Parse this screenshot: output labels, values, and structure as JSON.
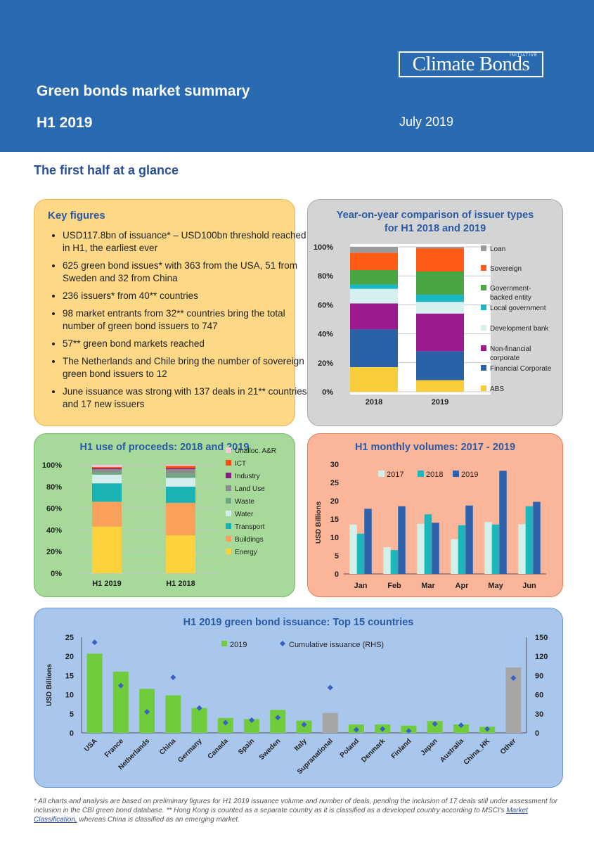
{
  "header": {
    "logo_text": "Climate Bonds",
    "logo_small": "INITIATIVE",
    "title": "Green bonds market summary",
    "subtitle": "H1 2019",
    "date": "July 2019"
  },
  "section_title": "The first half at a glance",
  "key_figures": {
    "title": "Key figures",
    "items": [
      "USD117.8bn of issuance* – USD100bn threshold reached in H1, the earliest ever",
      "625 green bond issues* with 363 from the USA, 51 from Sweden and 32 from China",
      "236 issuers* from 40** countries",
      "98 market entrants from 32** countries bring the total number of green bond issuers to 747",
      "57** green bond markets reached",
      "The Netherlands and Chile bring the number of sovereign green bond issuers to 12",
      "June issuance was strong with 137 deals in 21** countries and 17 new issuers"
    ]
  },
  "chart_data": [
    {
      "type": "bar",
      "stacked": true,
      "title": "Year-on-year comparison of issuer types for H1 2018 and 2019",
      "categories": [
        "2018",
        "2019"
      ],
      "ylim": [
        0,
        100
      ],
      "yticks": [
        "0%",
        "20%",
        "40%",
        "60%",
        "80%",
        "100%"
      ],
      "series": [
        {
          "name": "ABS",
          "color": "#f9cc3a",
          "values": [
            17,
            8
          ]
        },
        {
          "name": "Financial Corporate",
          "color": "#2a62a8",
          "values": [
            26,
            20
          ]
        },
        {
          "name": "Non-financial corporate",
          "color": "#9b1a8f",
          "values": [
            18,
            26
          ]
        },
        {
          "name": "Development bank",
          "color": "#d6f0f0",
          "values": [
            10,
            8
          ]
        },
        {
          "name": "Local government",
          "color": "#1bb8c4",
          "values": [
            3,
            5
          ]
        },
        {
          "name": "Government-backed entity",
          "color": "#4aa544",
          "values": [
            10,
            16
          ]
        },
        {
          "name": "Sovereign",
          "color": "#ff5b17",
          "values": [
            12,
            16
          ]
        },
        {
          "name": "Loan",
          "color": "#9b9b9b",
          "values": [
            4,
            1
          ]
        }
      ],
      "legend_order": [
        "Loan",
        "Sovereign",
        "Government-backed entity",
        "Local government",
        "Development bank",
        "Non-financial corporate",
        "Financial Corporate",
        "ABS"
      ]
    },
    {
      "type": "bar",
      "stacked": true,
      "title": "H1 use of proceeds: 2018 and 2019",
      "categories": [
        "H1 2019",
        "H1 2018"
      ],
      "ylim": [
        0,
        100
      ],
      "yticks": [
        "0%",
        "20%",
        "40%",
        "60%",
        "80%",
        "100%"
      ],
      "series": [
        {
          "name": "Energy",
          "color": "#fdd23c",
          "values": [
            43,
            35
          ]
        },
        {
          "name": "Buildings",
          "color": "#f9a05a",
          "values": [
            23,
            30
          ]
        },
        {
          "name": "Transport",
          "color": "#19b3b4",
          "values": [
            17,
            15
          ]
        },
        {
          "name": "Water",
          "color": "#d4eeee",
          "values": [
            8,
            8
          ]
        },
        {
          "name": "Waste",
          "color": "#6fa883",
          "values": [
            2,
            4
          ]
        },
        {
          "name": "Land Use",
          "color": "#8c8c8c",
          "values": [
            3,
            4
          ]
        },
        {
          "name": "Industry",
          "color": "#8a1c7c",
          "values": [
            1,
            1
          ]
        },
        {
          "name": "ICT",
          "color": "#ff4a10",
          "values": [
            1,
            2
          ]
        },
        {
          "name": "Unalloc. A&R",
          "color": "#f3c6dc",
          "values": [
            2,
            1
          ]
        }
      ],
      "legend_order": [
        "Unalloc. A&R",
        "ICT",
        "Industry",
        "Land Use",
        "Waste",
        "Water",
        "Transport",
        "Buildings",
        "Energy"
      ]
    },
    {
      "type": "bar",
      "title": "H1 monthly volumes: 2017 - 2019",
      "categories": [
        "Jan",
        "Feb",
        "Mar",
        "Apr",
        "May",
        "Jun"
      ],
      "ylabel": "USD Billions",
      "ylim": [
        0,
        30
      ],
      "yticks": [
        0,
        5,
        10,
        15,
        20,
        25,
        30
      ],
      "series": [
        {
          "name": "2017",
          "color": "#d4eeea",
          "values": [
            13.5,
            7.3,
            13.7,
            9.5,
            14.2,
            13.6
          ]
        },
        {
          "name": "2018",
          "color": "#1cb5b8",
          "values": [
            11,
            6.5,
            16.3,
            13.3,
            13.5,
            18.5
          ]
        },
        {
          "name": "2019",
          "color": "#2d62ac",
          "values": [
            17.8,
            18.5,
            14,
            18.7,
            28.2,
            19.7
          ]
        }
      ]
    },
    {
      "type": "bar",
      "title": "H1 2019 green bond issuance: Top 15 countries",
      "categories": [
        "USA",
        "France",
        "Netherlands",
        "China",
        "Germany",
        "Canada",
        "Spain",
        "Sweden",
        "Italy",
        "Supranational",
        "Poland",
        "Denmark",
        "Finland",
        "Japan",
        "Australia",
        "China_HK",
        "Other"
      ],
      "ylabel": "USD Billions",
      "ylim": [
        0,
        25
      ],
      "yticks": [
        0,
        5,
        10,
        15,
        20,
        25
      ],
      "y2lim": [
        0,
        150
      ],
      "y2ticks": [
        0,
        30,
        60,
        90,
        120,
        150
      ],
      "series": [
        {
          "name": "2019",
          "color": "#6fcc3a",
          "alt_color": "#a6a6a6",
          "values": [
            20.7,
            16,
            11.5,
            9.8,
            6.5,
            3.9,
            3.6,
            6,
            3.2,
            5.2,
            2.2,
            2.2,
            1.9,
            3.1,
            2.2,
            1.6,
            17.1
          ]
        },
        {
          "name": "Cumulative issuance (RHS)",
          "color": "#3a5fc4",
          "values": [
            142,
            74,
            33,
            87,
            39,
            16,
            20,
            24,
            13,
            71,
            5,
            6,
            3,
            14,
            12,
            6,
            86
          ]
        }
      ]
    }
  ],
  "footnote": {
    "text1": "*  All charts and analysis are based on preliminary figures for H1 2019 issuance volume and number of deals, pending the inclusion of 17 deals still under assessment for inclusion in the CBI green bond database. ** Hong Kong is counted as a separate country as it is classified as a developed country according to MSCI's ",
    "link": "Market Classification,",
    "text2": " whereas China is classified as an emerging market."
  }
}
